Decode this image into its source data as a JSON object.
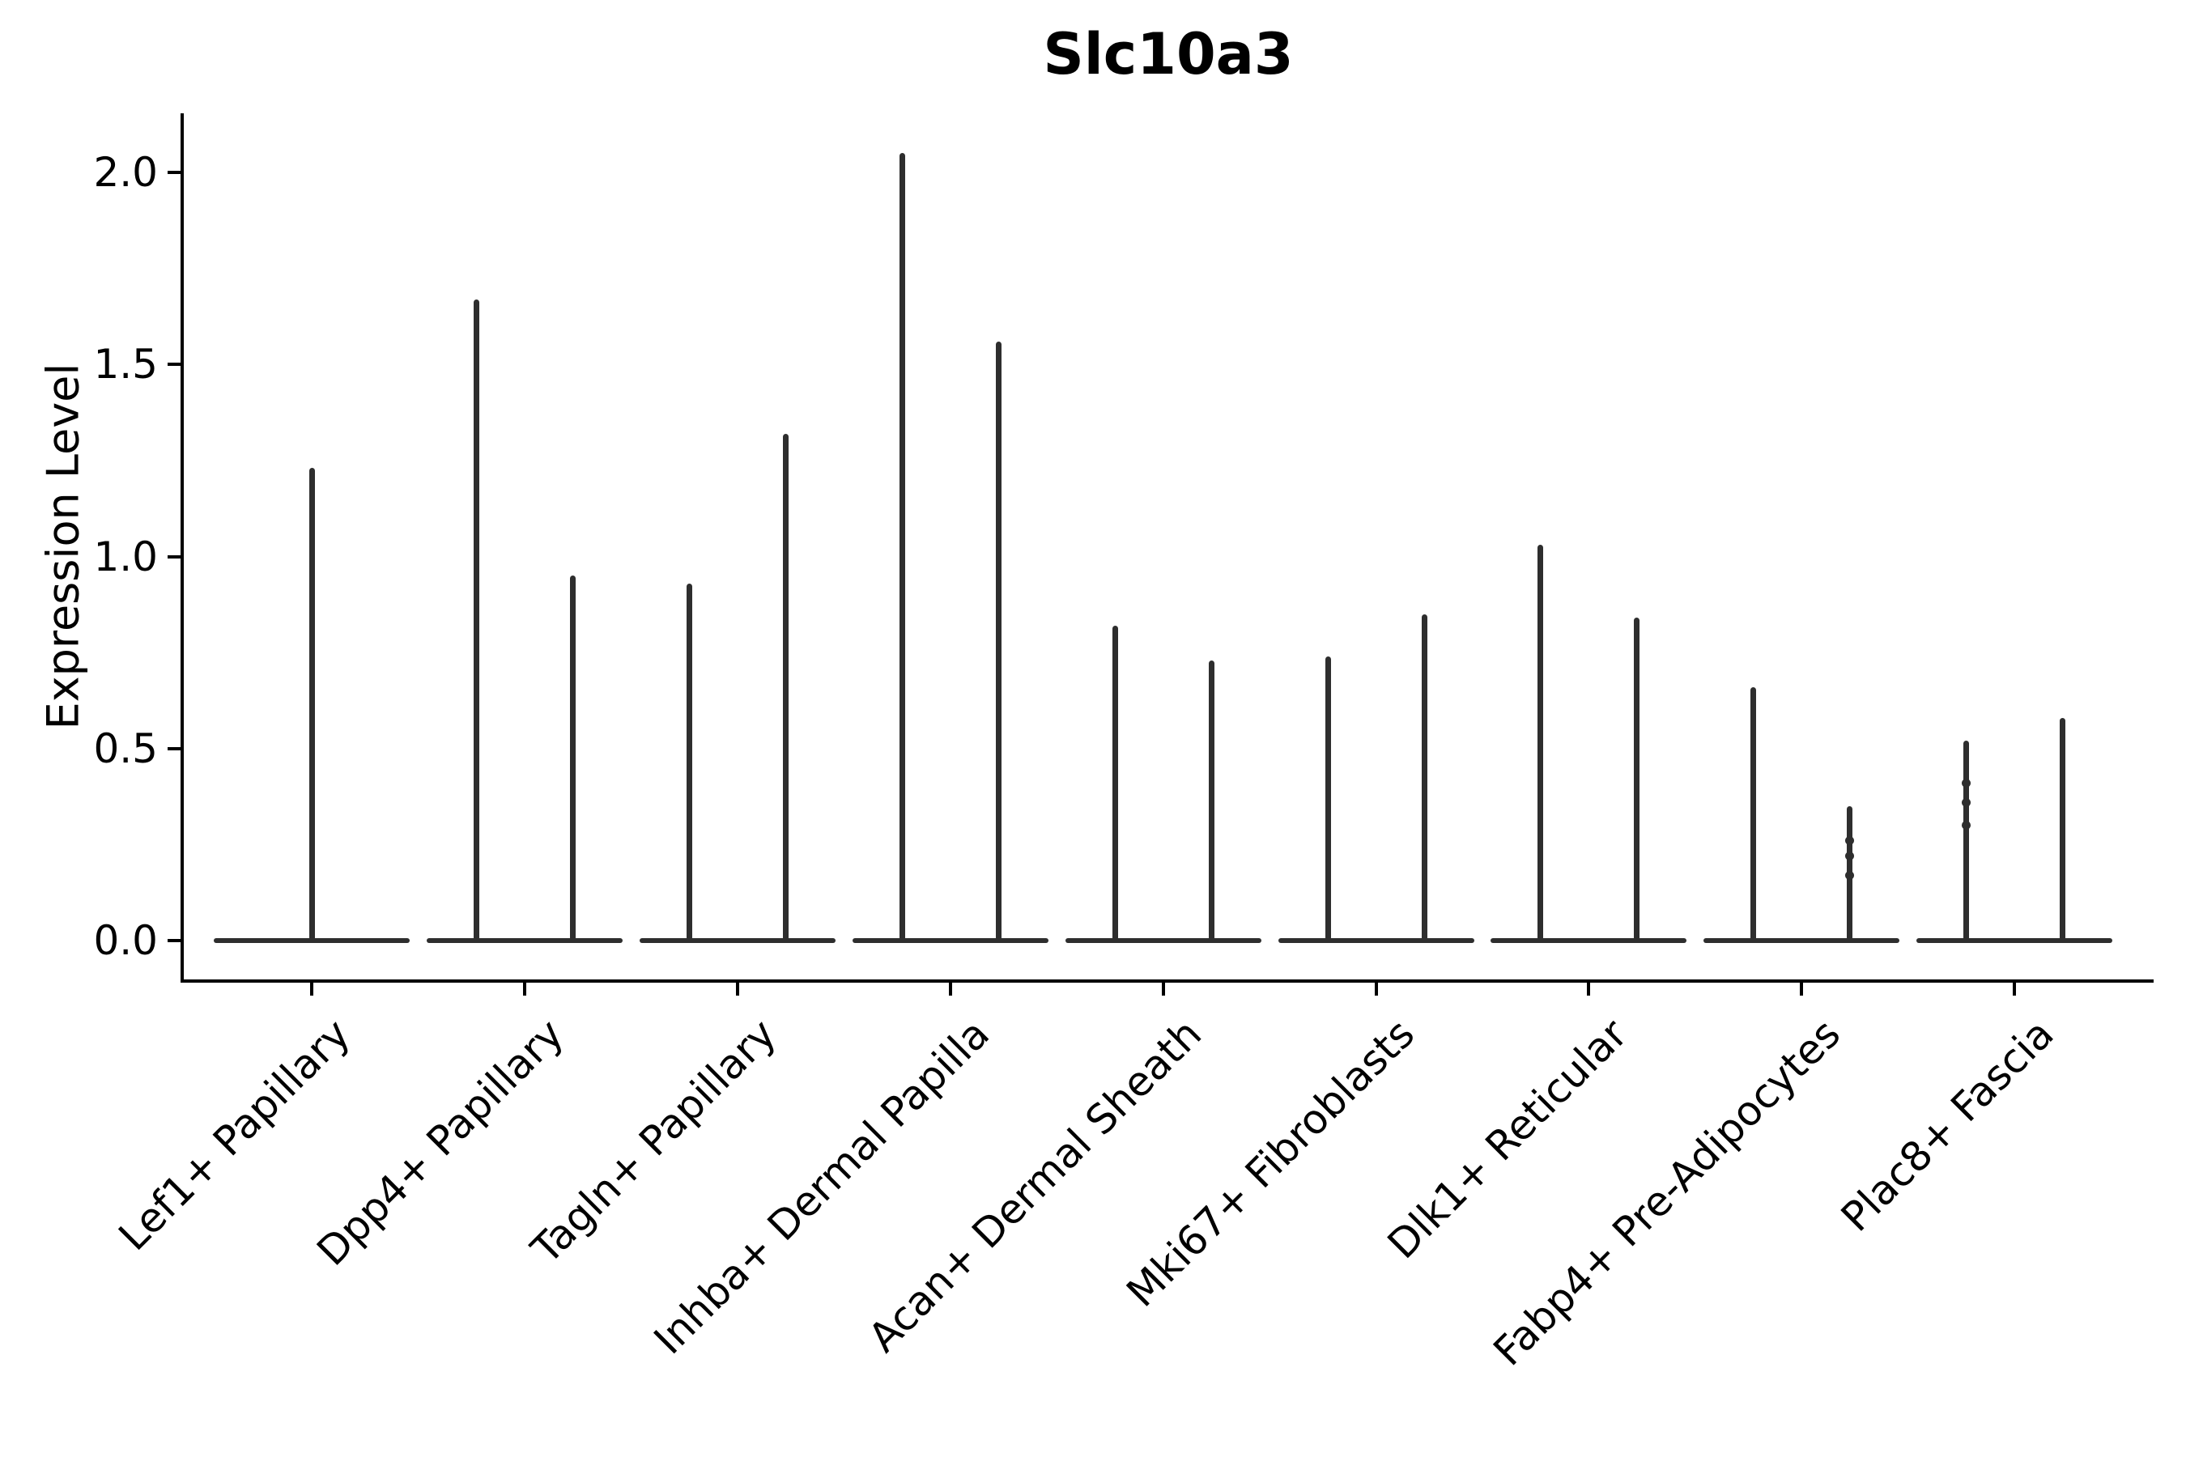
{
  "chart_data": {
    "type": "violin",
    "title": "Slc10a3",
    "ylabel": "Expression Level",
    "xlabel": "",
    "grid": false,
    "legend": "none",
    "violin_color": "#2e2e2e",
    "axis_color": "#000000",
    "ylim": [
      -0.1,
      2.15
    ],
    "yticks": [
      {
        "label": "0.0",
        "value": 0.0
      },
      {
        "label": "0.5",
        "value": 0.5
      },
      {
        "label": "1.0",
        "value": 1.0
      },
      {
        "label": "1.5",
        "value": 1.5
      },
      {
        "label": "2.0",
        "value": 2.0
      }
    ],
    "categories": [
      "Lef1+ Papillary",
      "Dpp4+ Papillary",
      "Tagln+ Papillary",
      "Inhba+ Dermal Papilla",
      "Acan+ Dermal Sheath",
      "Mki67+ Fibroblasts",
      "Dlk1+ Reticular",
      "Fabp4+ Pre-Adipocytes",
      "Plac8+ Fascia"
    ],
    "groups": [
      {
        "label": "Lef1+ Papillary",
        "violins": [
          {
            "max": 1.23,
            "dots": []
          }
        ]
      },
      {
        "label": "Dpp4+ Papillary",
        "violins": [
          {
            "max": 1.67,
            "dots": []
          },
          {
            "max": 0.95,
            "dots": []
          }
        ]
      },
      {
        "label": "Tagln+ Papillary",
        "violins": [
          {
            "max": 0.93,
            "dots": []
          },
          {
            "max": 1.32,
            "dots": []
          }
        ]
      },
      {
        "label": "Inhba+ Dermal Papilla",
        "violins": [
          {
            "max": 2.05,
            "dots": []
          },
          {
            "max": 1.56,
            "dots": []
          }
        ]
      },
      {
        "label": "Acan+ Dermal Sheath",
        "violins": [
          {
            "max": 0.82,
            "dots": []
          },
          {
            "max": 0.73,
            "dots": []
          }
        ]
      },
      {
        "label": "Mki67+ Fibroblasts",
        "violins": [
          {
            "max": 0.74,
            "dots": []
          },
          {
            "max": 0.85,
            "dots": []
          }
        ]
      },
      {
        "label": "Dlk1+ Reticular",
        "violins": [
          {
            "max": 1.03,
            "dots": []
          },
          {
            "max": 0.84,
            "dots": []
          }
        ]
      },
      {
        "label": "Fabp4+ Pre-Adipocytes",
        "violins": [
          {
            "max": 0.66,
            "dots": []
          },
          {
            "max": 0.35,
            "dots": [
              0.26,
              0.22,
              0.17
            ]
          }
        ]
      },
      {
        "label": "Plac8+ Fascia",
        "violins": [
          {
            "max": 0.52,
            "dots": [
              0.41,
              0.36,
              0.3
            ]
          },
          {
            "max": 0.58,
            "dots": []
          }
        ]
      }
    ]
  }
}
